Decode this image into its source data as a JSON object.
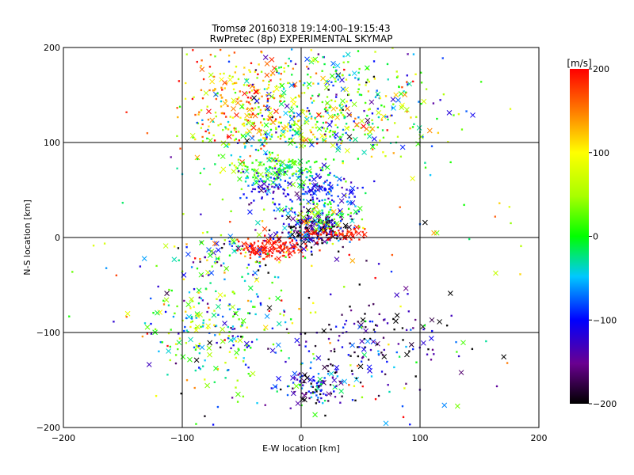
{
  "chart_data": {
    "type": "scatter",
    "title": "Tromsø 20160318 19:14:00–19:15:43",
    "subtitle": "RwPretec (8p) EXPERIMENTAL SKYMAP",
    "xlabel": "E-W location [km]",
    "ylabel": "N-S location [km]",
    "xlim": [
      -200,
      200
    ],
    "ylim": [
      -200,
      200
    ],
    "xticks": [
      -200,
      -100,
      0,
      100,
      200
    ],
    "yticks": [
      -200,
      -100,
      0,
      100,
      200
    ],
    "grid": true,
    "colorbar": {
      "label": "[m/s]",
      "range": [
        -200,
        200
      ],
      "ticks": [
        200,
        100,
        0,
        -100,
        -200
      ],
      "colormap": "rainbow (black-purple-blue-cyan-green-yellow-red)"
    },
    "clusters": [
      {
        "x": -45,
        "y": 145,
        "sx": 30,
        "sy": 25,
        "n": 260,
        "vmean": 120,
        "vsd": 50
      },
      {
        "x": 20,
        "y": 150,
        "sx": 45,
        "sy": 30,
        "n": 260,
        "vmean": -10,
        "vsd": 90
      },
      {
        "x": 60,
        "y": 130,
        "sx": 40,
        "sy": 30,
        "n": 120,
        "vmean": 20,
        "vsd": 80
      },
      {
        "x": -10,
        "y": 108,
        "sx": 45,
        "sy": 8,
        "n": 150,
        "vmean": 40,
        "vsd": 80
      },
      {
        "x": -20,
        "y": 70,
        "sx": 25,
        "sy": 10,
        "n": 180,
        "vmean": 0,
        "vsd": 40
      },
      {
        "x": 20,
        "y": 50,
        "sx": 15,
        "sy": 10,
        "n": 100,
        "vmean": -100,
        "vsd": 25
      },
      {
        "x": -30,
        "y": 50,
        "sx": 15,
        "sy": 10,
        "n": 70,
        "vmean": -110,
        "vsd": 30
      },
      {
        "x": 10,
        "y": 8,
        "sx": 15,
        "sy": 10,
        "n": 220,
        "vmean": -160,
        "vsd": 60
      },
      {
        "x": 30,
        "y": 4,
        "sx": 15,
        "sy": 4,
        "n": 60,
        "vmean": 190,
        "vsd": 10
      },
      {
        "x": -25,
        "y": -10,
        "sx": 15,
        "sy": 6,
        "n": 130,
        "vmean": 190,
        "vsd": 15
      },
      {
        "x": 20,
        "y": 25,
        "sx": 20,
        "sy": 10,
        "n": 100,
        "vmean": 20,
        "vsd": 80
      },
      {
        "x": -60,
        "y": -20,
        "sx": 25,
        "sy": 15,
        "n": 90,
        "vmean": -50,
        "vsd": 90
      },
      {
        "x": -70,
        "y": -95,
        "sx": 30,
        "sy": 30,
        "n": 240,
        "vmean": -10,
        "vsd": 80
      },
      {
        "x": 10,
        "y": -155,
        "sx": 15,
        "sy": 12,
        "n": 120,
        "vmean": -110,
        "vsd": 60
      },
      {
        "x": 60,
        "y": -115,
        "sx": 35,
        "sy": 25,
        "n": 160,
        "vmean": -160,
        "vsd": 60
      },
      {
        "x": 0,
        "y": -60,
        "sx": 110,
        "sy": 110,
        "n": 160,
        "vmean": 0,
        "vsd": 140
      }
    ]
  }
}
